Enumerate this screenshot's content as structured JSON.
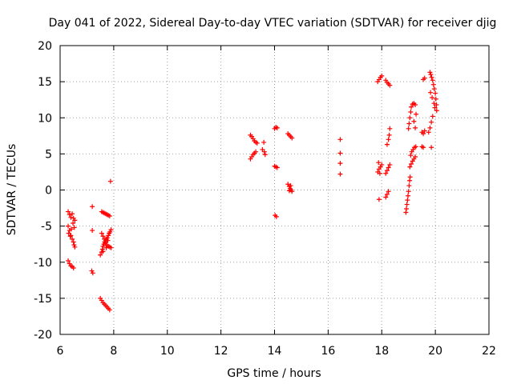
{
  "chart_data": {
    "type": "scatter",
    "title": "Day 041 of 2022, Sidereal Day-to-day VTEC variation (SDTVAR) for receiver djig",
    "xlabel": "GPS time / hours",
    "ylabel": "SDTVAR / TECUs",
    "xlim": [
      6,
      22
    ],
    "ylim": [
      -20,
      20
    ],
    "xticks": [
      6,
      8,
      10,
      12,
      14,
      16,
      18,
      20,
      22
    ],
    "yticks": [
      -20,
      -15,
      -10,
      -5,
      0,
      5,
      10,
      15,
      20
    ],
    "xtick_labels": [
      "6",
      "8",
      "10",
      "12",
      "14",
      "16",
      "18",
      "20",
      "22"
    ],
    "ytick_labels": [
      "-20",
      "-15",
      "-10",
      "-5",
      "0",
      "5",
      "10",
      "15",
      "20"
    ],
    "grid": true,
    "marker": "+",
    "color": "#ff0000",
    "series": [
      {
        "name": "SDTVAR",
        "points": [
          [
            6.3,
            -3.0
          ],
          [
            6.35,
            -3.4
          ],
          [
            6.4,
            -3.8
          ],
          [
            6.45,
            -3.3
          ],
          [
            6.5,
            -3.9
          ],
          [
            6.55,
            -4.2
          ],
          [
            6.3,
            -5.0
          ],
          [
            6.35,
            -5.6
          ],
          [
            6.4,
            -6.3
          ],
          [
            6.45,
            -6.8
          ],
          [
            6.5,
            -7.2
          ],
          [
            6.52,
            -7.6
          ],
          [
            6.55,
            -7.9
          ],
          [
            6.32,
            -6.0
          ],
          [
            6.38,
            -6.4
          ],
          [
            6.42,
            -5.4
          ],
          [
            6.48,
            -4.6
          ],
          [
            6.53,
            -5.2
          ],
          [
            6.3,
            -9.8
          ],
          [
            6.35,
            -10.2
          ],
          [
            6.4,
            -10.5
          ],
          [
            6.45,
            -10.6
          ],
          [
            6.5,
            -10.8
          ],
          [
            7.2,
            -2.3
          ],
          [
            7.2,
            -5.6
          ],
          [
            7.18,
            -11.2
          ],
          [
            7.22,
            -11.5
          ],
          [
            7.55,
            -3.0
          ],
          [
            7.6,
            -3.1
          ],
          [
            7.65,
            -3.2
          ],
          [
            7.7,
            -3.3
          ],
          [
            7.75,
            -3.4
          ],
          [
            7.8,
            -3.5
          ],
          [
            7.85,
            -3.6
          ],
          [
            7.5,
            -9.0
          ],
          [
            7.55,
            -8.6
          ],
          [
            7.58,
            -8.2
          ],
          [
            7.6,
            -7.8
          ],
          [
            7.63,
            -7.5
          ],
          [
            7.66,
            -7.2
          ],
          [
            7.7,
            -7.0
          ],
          [
            7.73,
            -6.8
          ],
          [
            7.76,
            -6.6
          ],
          [
            7.8,
            -6.3
          ],
          [
            7.83,
            -6.0
          ],
          [
            7.86,
            -5.8
          ],
          [
            7.9,
            -5.5
          ],
          [
            7.55,
            -6.0
          ],
          [
            7.6,
            -6.4
          ],
          [
            7.65,
            -6.8
          ],
          [
            7.7,
            -7.2
          ],
          [
            7.75,
            -7.6
          ],
          [
            7.8,
            -7.8
          ],
          [
            7.85,
            -7.9
          ],
          [
            7.9,
            -8.0
          ],
          [
            7.6,
            -8.5
          ],
          [
            7.68,
            -7.4
          ],
          [
            7.72,
            -8.0
          ],
          [
            7.78,
            -7.0
          ],
          [
            7.5,
            -15.0
          ],
          [
            7.55,
            -15.3
          ],
          [
            7.6,
            -15.6
          ],
          [
            7.65,
            -15.8
          ],
          [
            7.7,
            -16.0
          ],
          [
            7.75,
            -16.2
          ],
          [
            7.8,
            -16.4
          ],
          [
            7.85,
            -16.6
          ],
          [
            7.88,
            1.2
          ],
          [
            13.1,
            7.6
          ],
          [
            13.15,
            7.4
          ],
          [
            13.2,
            7.1
          ],
          [
            13.25,
            6.8
          ],
          [
            13.3,
            6.6
          ],
          [
            13.35,
            6.5
          ],
          [
            13.1,
            4.3
          ],
          [
            13.15,
            4.6
          ],
          [
            13.2,
            4.9
          ],
          [
            13.25,
            5.1
          ],
          [
            13.3,
            5.3
          ],
          [
            13.6,
            6.6
          ],
          [
            13.55,
            5.6
          ],
          [
            13.62,
            5.3
          ],
          [
            13.65,
            4.9
          ],
          [
            14.0,
            8.5
          ],
          [
            14.05,
            8.7
          ],
          [
            14.1,
            8.6
          ],
          [
            14.0,
            3.3
          ],
          [
            14.05,
            3.2
          ],
          [
            14.1,
            3.1
          ],
          [
            14.02,
            -3.5
          ],
          [
            14.07,
            -3.7
          ],
          [
            14.5,
            7.8
          ],
          [
            14.55,
            7.6
          ],
          [
            14.6,
            7.4
          ],
          [
            14.65,
            7.2
          ],
          [
            14.5,
            0.8
          ],
          [
            14.55,
            0.5
          ],
          [
            14.58,
            0.2
          ],
          [
            14.62,
            0.0
          ],
          [
            14.65,
            -0.2
          ],
          [
            14.6,
            0.6
          ],
          [
            14.55,
            -0.1
          ],
          [
            16.45,
            7.0
          ],
          [
            16.45,
            5.1
          ],
          [
            16.45,
            3.7
          ],
          [
            16.45,
            2.2
          ],
          [
            17.85,
            15.0
          ],
          [
            17.9,
            15.3
          ],
          [
            17.95,
            15.6
          ],
          [
            18.0,
            15.8
          ],
          [
            17.85,
            2.5
          ],
          [
            17.9,
            2.9
          ],
          [
            17.95,
            3.2
          ],
          [
            18.0,
            3.5
          ],
          [
            17.88,
            3.8
          ],
          [
            17.93,
            2.3
          ],
          [
            17.9,
            -1.3
          ],
          [
            18.15,
            15.2
          ],
          [
            18.2,
            14.9
          ],
          [
            18.25,
            14.7
          ],
          [
            18.3,
            14.5
          ],
          [
            18.15,
            -1.0
          ],
          [
            18.2,
            -0.6
          ],
          [
            18.25,
            -0.2
          ],
          [
            18.15,
            2.3
          ],
          [
            18.2,
            2.7
          ],
          [
            18.25,
            3.1
          ],
          [
            18.3,
            3.5
          ],
          [
            18.2,
            6.3
          ],
          [
            18.25,
            7.0
          ],
          [
            18.28,
            7.6
          ],
          [
            18.3,
            8.5
          ],
          [
            18.9,
            -3.1
          ],
          [
            18.92,
            -2.6
          ],
          [
            18.94,
            -2.0
          ],
          [
            18.96,
            -1.4
          ],
          [
            18.98,
            -0.8
          ],
          [
            19.0,
            -0.2
          ],
          [
            19.02,
            0.6
          ],
          [
            19.04,
            1.3
          ],
          [
            19.06,
            1.8
          ],
          [
            19.0,
            8.5
          ],
          [
            19.02,
            9.2
          ],
          [
            19.05,
            10.0
          ],
          [
            19.08,
            10.8
          ],
          [
            19.1,
            11.5
          ],
          [
            19.15,
            11.9
          ],
          [
            19.2,
            12.0
          ],
          [
            19.25,
            11.8
          ],
          [
            19.05,
            3.2
          ],
          [
            19.1,
            3.6
          ],
          [
            19.15,
            4.0
          ],
          [
            19.2,
            4.3
          ],
          [
            19.25,
            4.6
          ],
          [
            19.08,
            4.8
          ],
          [
            19.12,
            5.3
          ],
          [
            19.17,
            5.6
          ],
          [
            19.22,
            5.9
          ],
          [
            19.27,
            6.0
          ],
          [
            19.25,
            8.6
          ],
          [
            19.2,
            9.5
          ],
          [
            19.28,
            10.5
          ],
          [
            19.55,
            15.3
          ],
          [
            19.6,
            15.5
          ],
          [
            19.5,
            8.0
          ],
          [
            19.55,
            7.8
          ],
          [
            19.6,
            8.2
          ],
          [
            19.5,
            6.0
          ],
          [
            19.55,
            5.9
          ],
          [
            19.85,
            5.9
          ],
          [
            19.75,
            8.0
          ],
          [
            19.8,
            8.6
          ],
          [
            19.85,
            9.4
          ],
          [
            19.9,
            10.2
          ],
          [
            19.8,
            16.3
          ],
          [
            19.83,
            16.0
          ],
          [
            19.86,
            15.6
          ],
          [
            19.9,
            15.2
          ],
          [
            19.93,
            14.6
          ],
          [
            19.96,
            14.0
          ],
          [
            20.0,
            13.4
          ],
          [
            20.02,
            12.6
          ],
          [
            20.04,
            11.8
          ],
          [
            20.05,
            11.0
          ],
          [
            19.82,
            13.5
          ],
          [
            19.88,
            12.8
          ],
          [
            19.95,
            12.0
          ],
          [
            19.98,
            11.4
          ]
        ]
      }
    ]
  }
}
